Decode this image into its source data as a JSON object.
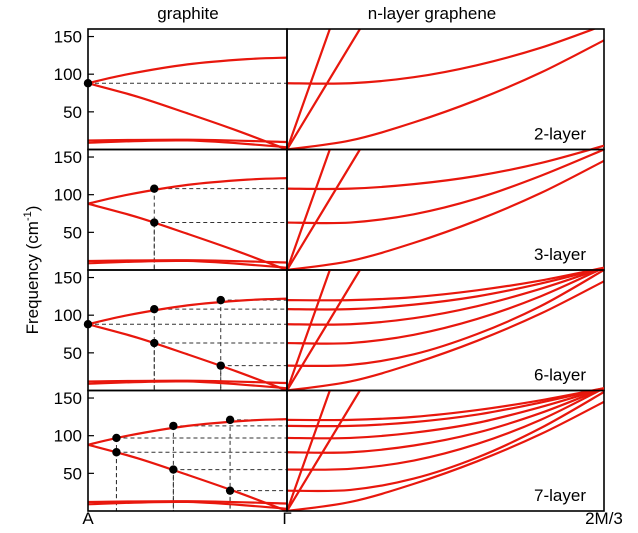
{
  "chart_data": {
    "type": "line",
    "column_titles": [
      "graphite",
      "n-layer graphene"
    ],
    "ylabel": "Frequency (cm",
    "ylabel_sup": "-1",
    "ylabel_close": ")",
    "ylim": [
      0,
      160
    ],
    "yticks": [
      "50",
      "100",
      "150"
    ],
    "ytick_values": [
      50,
      100,
      150
    ],
    "x_labels": {
      "left": "A",
      "center": "Γ",
      "right": "2M/3"
    },
    "line_color": "#e8170d",
    "panels": [
      {
        "layer_label": "2-layer",
        "n": 2,
        "graphite_curves": [
          {
            "name": "upper",
            "points": [
              [
                0,
                88
              ],
              [
                0.2,
                100
              ],
              [
                0.5,
                113
              ],
              [
                0.8,
                120
              ],
              [
                1,
                122
              ]
            ]
          },
          {
            "name": "lower",
            "points": [
              [
                0,
                88
              ],
              [
                0.25,
                70
              ],
              [
                0.5,
                48
              ],
              [
                0.75,
                25
              ],
              [
                1,
                0
              ]
            ]
          },
          {
            "name": "flat-1",
            "points": [
              [
                0,
                12
              ],
              [
                0.5,
                13
              ],
              [
                1,
                10
              ]
            ]
          },
          {
            "name": "flat-2",
            "points": [
              [
                0,
                9
              ],
              [
                0.5,
                12
              ],
              [
                1,
                3
              ]
            ]
          }
        ],
        "markers": [
          [
            0,
            88
          ]
        ],
        "graphene_curves": [
          {
            "name": "steep-1",
            "points": [
              [
                0,
                0
              ],
              [
                0.135,
                160
              ]
            ]
          },
          {
            "name": "steep-2",
            "points": [
              [
                0,
                0
              ],
              [
                0.23,
                160
              ]
            ]
          },
          {
            "name": "band-1",
            "points": [
              [
                0,
                88
              ],
              [
                0.2,
                88
              ],
              [
                0.4,
                96
              ],
              [
                0.6,
                112
              ],
              [
                0.8,
                135
              ],
              [
                1,
                165
              ]
            ]
          },
          {
            "name": "band-2",
            "points": [
              [
                0,
                0
              ],
              [
                0.2,
                12
              ],
              [
                0.4,
                36
              ],
              [
                0.6,
                66
              ],
              [
                0.8,
                102
              ],
              [
                1,
                145
              ]
            ]
          }
        ]
      },
      {
        "layer_label": "3-layer",
        "n": 3,
        "graphite_curves": [
          {
            "name": "upper",
            "points": [
              [
                0,
                88
              ],
              [
                0.2,
                100
              ],
              [
                0.5,
                113
              ],
              [
                0.8,
                120
              ],
              [
                1,
                122
              ]
            ]
          },
          {
            "name": "lower",
            "points": [
              [
                0,
                88
              ],
              [
                0.25,
                70
              ],
              [
                0.5,
                48
              ],
              [
                0.75,
                25
              ],
              [
                1,
                0
              ]
            ]
          },
          {
            "name": "flat-1",
            "points": [
              [
                0,
                12
              ],
              [
                0.5,
                13
              ],
              [
                1,
                10
              ]
            ]
          },
          {
            "name": "flat-2",
            "points": [
              [
                0,
                9
              ],
              [
                0.5,
                12
              ],
              [
                1,
                3
              ]
            ]
          }
        ],
        "markers": [
          [
            0.333,
            108
          ],
          [
            0.333,
            63
          ]
        ],
        "graphene_curves": [
          {
            "name": "steep-1",
            "points": [
              [
                0,
                0
              ],
              [
                0.135,
                160
              ]
            ]
          },
          {
            "name": "steep-2",
            "points": [
              [
                0,
                0
              ],
              [
                0.23,
                160
              ]
            ]
          },
          {
            "name": "band-1",
            "points": [
              [
                0,
                108
              ],
              [
                0.2,
                108
              ],
              [
                0.4,
                114
              ],
              [
                0.6,
                125
              ],
              [
                0.8,
                142
              ],
              [
                1,
                165
              ]
            ]
          },
          {
            "name": "band-2",
            "points": [
              [
                0,
                63
              ],
              [
                0.2,
                63
              ],
              [
                0.4,
                74
              ],
              [
                0.6,
                95
              ],
              [
                0.8,
                125
              ],
              [
                1,
                160
              ]
            ]
          },
          {
            "name": "band-3",
            "points": [
              [
                0,
                0
              ],
              [
                0.2,
                12
              ],
              [
                0.4,
                36
              ],
              [
                0.6,
                66
              ],
              [
                0.8,
                102
              ],
              [
                1,
                145
              ]
            ]
          }
        ]
      },
      {
        "layer_label": "6-layer",
        "n": 6,
        "graphite_curves": [
          {
            "name": "upper",
            "points": [
              [
                0,
                88
              ],
              [
                0.2,
                100
              ],
              [
                0.5,
                113
              ],
              [
                0.8,
                120
              ],
              [
                1,
                122
              ]
            ]
          },
          {
            "name": "lower",
            "points": [
              [
                0,
                88
              ],
              [
                0.25,
                70
              ],
              [
                0.5,
                48
              ],
              [
                0.75,
                25
              ],
              [
                1,
                0
              ]
            ]
          },
          {
            "name": "flat-1",
            "points": [
              [
                0,
                12
              ],
              [
                0.5,
                13
              ],
              [
                1,
                10
              ]
            ]
          },
          {
            "name": "flat-2",
            "points": [
              [
                0,
                9
              ],
              [
                0.5,
                12
              ],
              [
                1,
                3
              ]
            ]
          }
        ],
        "markers": [
          [
            0,
            88
          ],
          [
            0.333,
            108
          ],
          [
            0.667,
            120
          ],
          [
            0.333,
            63
          ],
          [
            0.667,
            33
          ]
        ],
        "graphene_curves": [
          {
            "name": "steep-1",
            "points": [
              [
                0,
                0
              ],
              [
                0.135,
                160
              ]
            ]
          },
          {
            "name": "steep-2",
            "points": [
              [
                0,
                0
              ],
              [
                0.23,
                160
              ]
            ]
          },
          {
            "name": "band-1",
            "points": [
              [
                0,
                120
              ],
              [
                0.2,
                120
              ],
              [
                0.4,
                124
              ],
              [
                0.6,
                133
              ],
              [
                0.8,
                146
              ],
              [
                1,
                163
              ]
            ]
          },
          {
            "name": "band-2",
            "points": [
              [
                0,
                108
              ],
              [
                0.2,
                108
              ],
              [
                0.4,
                114
              ],
              [
                0.6,
                125
              ],
              [
                0.8,
                142
              ],
              [
                1,
                163
              ]
            ]
          },
          {
            "name": "band-3",
            "points": [
              [
                0,
                88
              ],
              [
                0.2,
                88
              ],
              [
                0.4,
                96
              ],
              [
                0.6,
                112
              ],
              [
                0.8,
                135
              ],
              [
                1,
                163
              ]
            ]
          },
          {
            "name": "band-4",
            "points": [
              [
                0,
                63
              ],
              [
                0.2,
                63
              ],
              [
                0.4,
                74
              ],
              [
                0.6,
                95
              ],
              [
                0.8,
                125
              ],
              [
                1,
                163
              ]
            ]
          },
          {
            "name": "band-5",
            "points": [
              [
                0,
                33
              ],
              [
                0.2,
                34
              ],
              [
                0.4,
                48
              ],
              [
                0.6,
                75
              ],
              [
                0.8,
                112
              ],
              [
                1,
                160
              ]
            ]
          },
          {
            "name": "band-6",
            "points": [
              [
                0,
                0
              ],
              [
                0.2,
                12
              ],
              [
                0.4,
                36
              ],
              [
                0.6,
                66
              ],
              [
                0.8,
                102
              ],
              [
                1,
                145
              ]
            ]
          }
        ]
      },
      {
        "layer_label": "7-layer",
        "n": 7,
        "graphite_curves": [
          {
            "name": "upper",
            "points": [
              [
                0,
                88
              ],
              [
                0.2,
                100
              ],
              [
                0.5,
                113
              ],
              [
                0.8,
                120
              ],
              [
                1,
                122
              ]
            ]
          },
          {
            "name": "lower",
            "points": [
              [
                0,
                88
              ],
              [
                0.25,
                70
              ],
              [
                0.5,
                48
              ],
              [
                0.75,
                25
              ],
              [
                1,
                0
              ]
            ]
          },
          {
            "name": "flat-1",
            "points": [
              [
                0,
                12
              ],
              [
                0.5,
                13
              ],
              [
                1,
                10
              ]
            ]
          },
          {
            "name": "flat-2",
            "points": [
              [
                0,
                9
              ],
              [
                0.5,
                12
              ],
              [
                1,
                3
              ]
            ]
          }
        ],
        "markers": [
          [
            0.143,
            97
          ],
          [
            0.143,
            78
          ],
          [
            0.429,
            113
          ],
          [
            0.429,
            55
          ],
          [
            0.714,
            121
          ],
          [
            0.714,
            27
          ]
        ],
        "graphene_curves": [
          {
            "name": "steep-1",
            "points": [
              [
                0,
                0
              ],
              [
                0.135,
                160
              ]
            ]
          },
          {
            "name": "steep-2",
            "points": [
              [
                0,
                0
              ],
              [
                0.23,
                160
              ]
            ]
          },
          {
            "name": "band-1",
            "points": [
              [
                0,
                121
              ],
              [
                0.2,
                121
              ],
              [
                0.4,
                125
              ],
              [
                0.6,
                134
              ],
              [
                0.8,
                147
              ],
              [
                1,
                163
              ]
            ]
          },
          {
            "name": "band-2",
            "points": [
              [
                0,
                113
              ],
              [
                0.2,
                113
              ],
              [
                0.4,
                118
              ],
              [
                0.6,
                128
              ],
              [
                0.8,
                144
              ],
              [
                1,
                163
              ]
            ]
          },
          {
            "name": "band-3",
            "points": [
              [
                0,
                97
              ],
              [
                0.2,
                97
              ],
              [
                0.4,
                104
              ],
              [
                0.6,
                117
              ],
              [
                0.8,
                138
              ],
              [
                1,
                163
              ]
            ]
          },
          {
            "name": "band-4",
            "points": [
              [
                0,
                78
              ],
              [
                0.2,
                78
              ],
              [
                0.4,
                87
              ],
              [
                0.6,
                104
              ],
              [
                0.8,
                130
              ],
              [
                1,
                163
              ]
            ]
          },
          {
            "name": "band-5",
            "points": [
              [
                0,
                55
              ],
              [
                0.2,
                56
              ],
              [
                0.4,
                67
              ],
              [
                0.6,
                89
              ],
              [
                0.8,
                121
              ],
              [
                1,
                163
              ]
            ]
          },
          {
            "name": "band-6",
            "points": [
              [
                0,
                27
              ],
              [
                0.2,
                28
              ],
              [
                0.4,
                43
              ],
              [
                0.6,
                71
              ],
              [
                0.8,
                110
              ],
              [
                1,
                158
              ]
            ]
          },
          {
            "name": "band-7",
            "points": [
              [
                0,
                0
              ],
              [
                0.2,
                12
              ],
              [
                0.4,
                36
              ],
              [
                0.6,
                66
              ],
              [
                0.8,
                102
              ],
              [
                1,
                145
              ]
            ]
          }
        ]
      }
    ]
  }
}
